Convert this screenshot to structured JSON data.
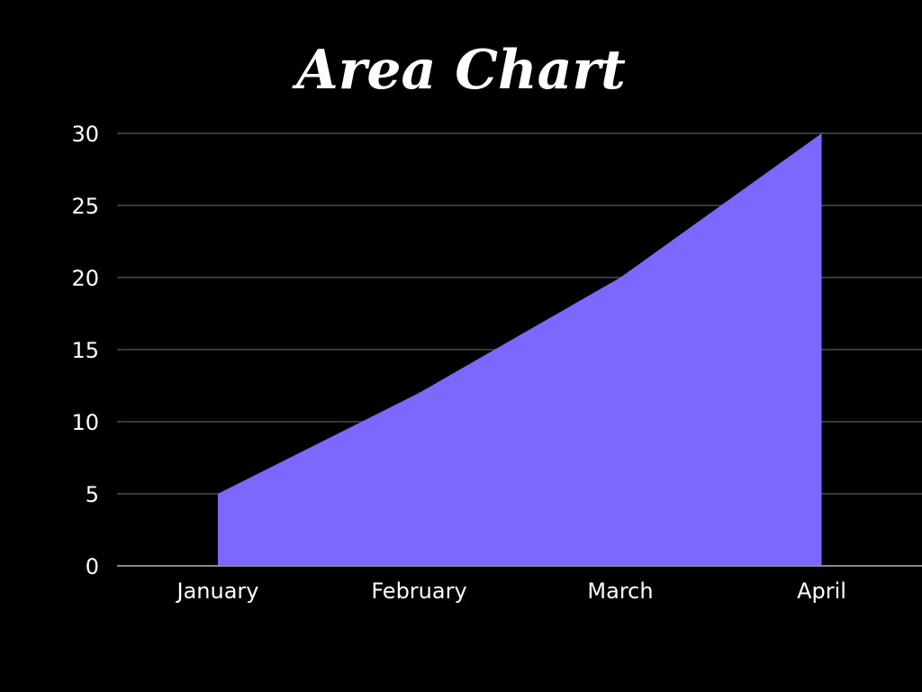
{
  "chart_data": {
    "type": "area",
    "title": "Area Chart",
    "categories": [
      "January",
      "February",
      "March",
      "April"
    ],
    "values": [
      5,
      12,
      20,
      30
    ],
    "ylim": [
      0,
      30
    ],
    "yticks": [
      "0",
      "5",
      "10",
      "15",
      "20",
      "25",
      "30"
    ],
    "grid": true,
    "legend": "none",
    "colors": {
      "background": "#000000",
      "area": "#7b68ff",
      "grid": "#4a4a4a",
      "axis": "#8a8a8a",
      "text": "#ffffff"
    }
  }
}
